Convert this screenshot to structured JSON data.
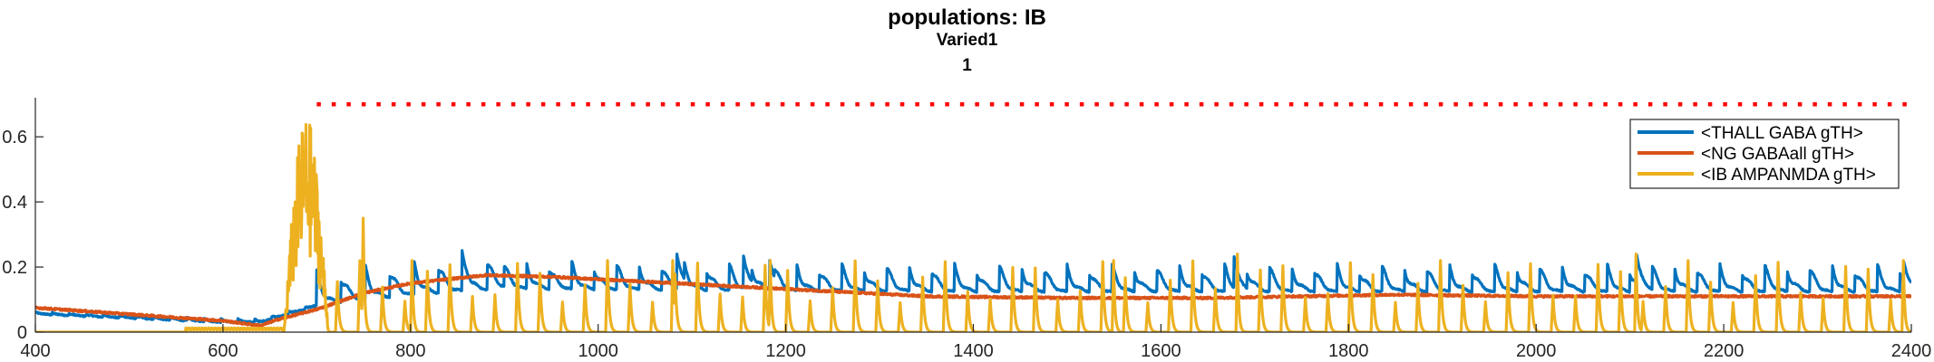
{
  "chart_data": {
    "type": "line",
    "title": "populations: IB",
    "subtitle": [
      "Varied1",
      "1"
    ],
    "xlabel": "",
    "ylabel": "",
    "xlim": [
      400,
      2400
    ],
    "ylim": [
      0,
      0.72
    ],
    "xticks": [
      400,
      600,
      800,
      1000,
      1200,
      1400,
      1600,
      1800,
      2000,
      2200,
      2400
    ],
    "yticks": [
      0,
      0.2,
      0.4,
      0.6
    ],
    "ytick_labels": [
      "0",
      "0.2",
      "0.4",
      "0.6"
    ],
    "grid": false,
    "legend_position": "top-right",
    "threshold": {
      "y": 0.7,
      "x_start": 700,
      "x_end": 2400,
      "style": "dotted",
      "color": "#ff0000"
    },
    "series": [
      {
        "name": "<THALL GABA gTH>",
        "color": "#0072BD",
        "model": {
          "kind": "decaying-spikes",
          "baseline_points": [
            [
              400,
              0.055
            ],
            [
              600,
              0.03
            ],
            [
              640,
              0.03
            ],
            [
              700,
              0.08
            ],
            [
              800,
              0.11
            ],
            [
              900,
              0.13
            ],
            [
              1100,
              0.125
            ],
            [
              1400,
              0.12
            ],
            [
              2400,
              0.12
            ]
          ],
          "spikes": [
            {
              "from": 400,
              "to": 700,
              "period": 18,
              "peak": 0.01
            },
            {
              "from": 700,
              "to": 900,
              "period": 26,
              "peak": 0.11
            },
            {
              "from": 900,
              "to": 2400,
              "period": 24,
              "peak": 0.09
            }
          ],
          "extra_peaks": [
            [
              855,
              0.25
            ],
            [
              1084,
              0.24
            ],
            [
              1155,
              0.235
            ],
            [
              1183,
              0.22
            ],
            [
              1678,
              0.23
            ],
            [
              2107,
              0.24
            ],
            [
              2392,
              0.215
            ]
          ]
        }
      },
      {
        "name": "<NG GABAall gTH>",
        "color": "#D95319",
        "points": [
          [
            400,
            0.075
          ],
          [
            500,
            0.055
          ],
          [
            600,
            0.035
          ],
          [
            640,
            0.02
          ],
          [
            660,
            0.04
          ],
          [
            700,
            0.07
          ],
          [
            750,
            0.12
          ],
          [
            800,
            0.15
          ],
          [
            880,
            0.175
          ],
          [
            950,
            0.17
          ],
          [
            1050,
            0.155
          ],
          [
            1150,
            0.14
          ],
          [
            1250,
            0.125
          ],
          [
            1350,
            0.11
          ],
          [
            1500,
            0.105
          ],
          [
            1650,
            0.105
          ],
          [
            1750,
            0.11
          ],
          [
            1850,
            0.115
          ],
          [
            2000,
            0.11
          ],
          [
            2200,
            0.11
          ],
          [
            2400,
            0.11
          ]
        ],
        "noise": 0.003
      },
      {
        "name": "<IB AMPANMDA gTH>",
        "color": "#EDB120",
        "model": {
          "kind": "pulse-train",
          "baseline": 0.0,
          "burst": {
            "from": 665,
            "to": 715,
            "max": 0.665
          },
          "pulses": {
            "from": 720,
            "to": 2400,
            "period": 24,
            "peak_min": 0.09,
            "peak_max": 0.22
          },
          "tall_pulses": [
            [
              748,
              0.35
            ],
            [
              800,
              0.22
            ],
            [
              1078,
              0.22
            ],
            [
              1182,
              0.22
            ],
            [
              1548,
              0.22
            ],
            [
              1680,
              0.24
            ],
            [
              2105,
              0.24
            ],
            [
              2390,
              0.22
            ]
          ]
        }
      }
    ]
  }
}
